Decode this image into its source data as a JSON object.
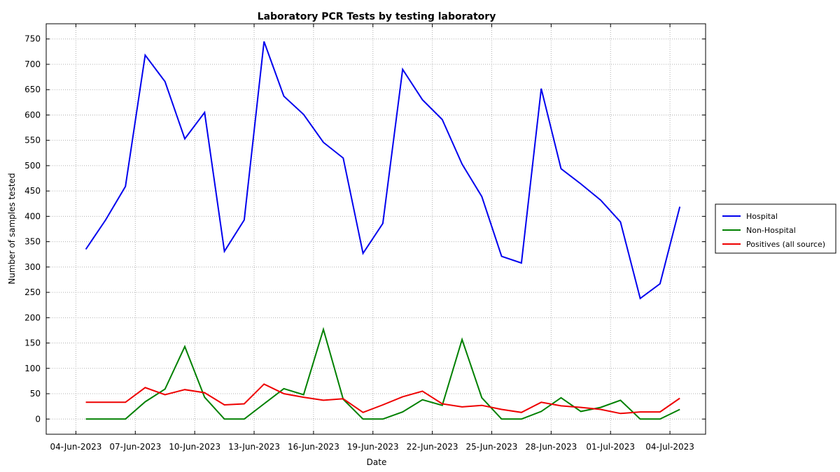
{
  "chart_data": {
    "type": "line",
    "title": "Laboratory PCR Tests by testing laboratory",
    "xlabel": "Date",
    "ylabel": "Number of samples tested",
    "x_start": "2023-06-05",
    "x_tick_labels": [
      "04-Jun-2023",
      "07-Jun-2023",
      "10-Jun-2023",
      "13-Jun-2023",
      "16-Jun-2023",
      "19-Jun-2023",
      "22-Jun-2023",
      "25-Jun-2023",
      "28-Jun-2023",
      "01-Jul-2023",
      "04-Jul-2023"
    ],
    "x_tick_offsets": [
      -0.5,
      2.5,
      5.5,
      8.5,
      11.5,
      14.5,
      17.5,
      20.5,
      23.5,
      26.5,
      29.5
    ],
    "x_range": [
      -2.0,
      31.3
    ],
    "ylim": [
      -30,
      780
    ],
    "yticks": [
      0,
      50,
      100,
      150,
      200,
      250,
      300,
      350,
      400,
      450,
      500,
      550,
      600,
      650,
      700,
      750
    ],
    "grid": true,
    "legend_position": "right",
    "series": [
      {
        "name": "Hospital",
        "color": "#0000ee",
        "values": [
          335,
          393,
          459,
          718,
          666,
          553,
          605,
          331,
          393,
          745,
          637,
          601,
          546,
          515,
          327,
          386,
          690,
          630,
          591,
          503,
          439,
          321,
          308,
          652,
          494,
          464,
          432,
          389,
          238,
          267,
          419
        ]
      },
      {
        "name": "Non-Hospital",
        "color": "#008000",
        "values": [
          0,
          0,
          0,
          34,
          59,
          143,
          43,
          0,
          0,
          30,
          60,
          48,
          177,
          39,
          0,
          0,
          14,
          38,
          27,
          157,
          42,
          0,
          0,
          15,
          42,
          15,
          23,
          37,
          0,
          0,
          19
        ]
      },
      {
        "name": "Positives (all source)",
        "color": "#ee0000",
        "values": [
          33,
          33,
          33,
          62,
          48,
          58,
          52,
          28,
          30,
          69,
          50,
          43,
          37,
          40,
          13,
          28,
          44,
          55,
          30,
          24,
          27,
          19,
          13,
          33,
          26,
          23,
          19,
          11,
          14,
          14,
          41
        ]
      }
    ]
  }
}
